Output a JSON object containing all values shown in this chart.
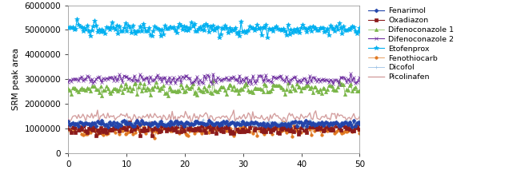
{
  "title": "",
  "xlabel": "",
  "ylabel": "SRM peak area",
  "xlim": [
    0,
    50
  ],
  "ylim": [
    0,
    6000000
  ],
  "yticks": [
    0,
    1000000,
    2000000,
    3000000,
    4000000,
    5000000,
    6000000
  ],
  "xticks": [
    0,
    10,
    20,
    30,
    40,
    50
  ],
  "n_points": 200,
  "series": [
    {
      "name": "Fenarimol",
      "color": "#2244aa",
      "mean": 1200000,
      "noise": 60000,
      "marker": "D",
      "markersize": 2.5,
      "linewidth": 0.8,
      "zorder": 6,
      "alpha": 1.0
    },
    {
      "name": "Oxadiazon",
      "color": "#8b1a1a",
      "mean": 1000000,
      "noise": 110000,
      "marker": "s",
      "markersize": 2.5,
      "linewidth": 0.8,
      "zorder": 4,
      "alpha": 1.0
    },
    {
      "name": "Difenoconazole 1",
      "color": "#7ab648",
      "mean": 2600000,
      "noise": 130000,
      "marker": "^",
      "markersize": 3.0,
      "linewidth": 0.5,
      "zorder": 3,
      "alpha": 1.0
    },
    {
      "name": "Difenoconazole 2",
      "color": "#7030a0",
      "mean": 3000000,
      "noise": 100000,
      "marker": "x",
      "markersize": 3.5,
      "linewidth": 0.8,
      "zorder": 7,
      "alpha": 1.0
    },
    {
      "name": "Etofenprox",
      "color": "#00b0f0",
      "mean": 5050000,
      "noise": 130000,
      "marker": "*",
      "markersize": 4.0,
      "linewidth": 0.8,
      "zorder": 8,
      "alpha": 1.0
    },
    {
      "name": "Fenothiocarb",
      "color": "#e07820",
      "mean": 950000,
      "noise": 110000,
      "marker": "o",
      "markersize": 2.5,
      "linewidth": 0.5,
      "zorder": 2,
      "alpha": 1.0
    },
    {
      "name": "Dicofol",
      "color": "#9dc3e6",
      "mean": 1200000,
      "noise": 60000,
      "marker": "+",
      "markersize": 3.0,
      "linewidth": 0.6,
      "zorder": 5,
      "alpha": 1.0
    },
    {
      "name": "Picolinafen",
      "color": "#d4a0a0",
      "mean": 1480000,
      "noise": 100000,
      "marker": "None",
      "markersize": 0,
      "linewidth": 1.0,
      "zorder": 4,
      "alpha": 1.0
    }
  ],
  "figsize": [
    6.56,
    2.18
  ],
  "dpi": 100,
  "seed": 7
}
